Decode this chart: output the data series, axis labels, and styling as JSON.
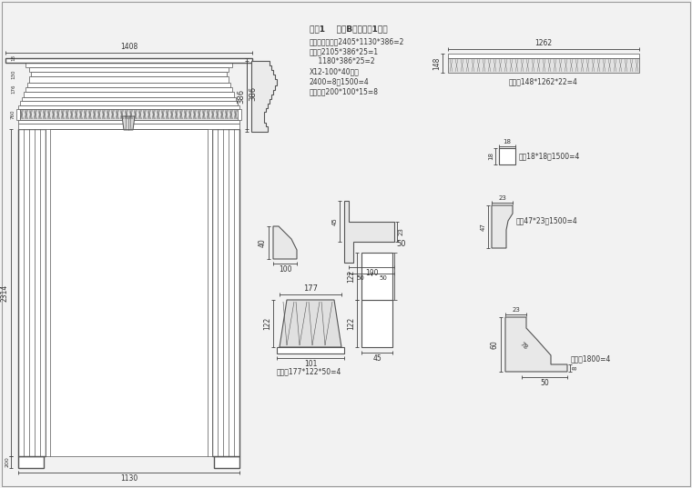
{
  "bg_color": "#ffffff",
  "line_color": "#666666",
  "text_color": "#333333",
  "title_text": "序号1    客厅B立面庑口1料单",
  "subtitle_lines": [
    "门框内径尺尧：2405*1130*386=2",
    "主板：2105*386*25=1",
    "    1180*386*25=2",
    "X12-100*40线条",
    "2400=8，1500=4",
    "配底座：200*100*15=8"
  ],
  "label_sudaban": "据板：148*1262*22=4",
  "label_yazhu": "压条18*18：1500=4",
  "label_yaxian": "压线47*23：1500=4",
  "label_hutou": "虎头：1800=4",
  "label_diaohua": "雕花：177*122*50=4"
}
